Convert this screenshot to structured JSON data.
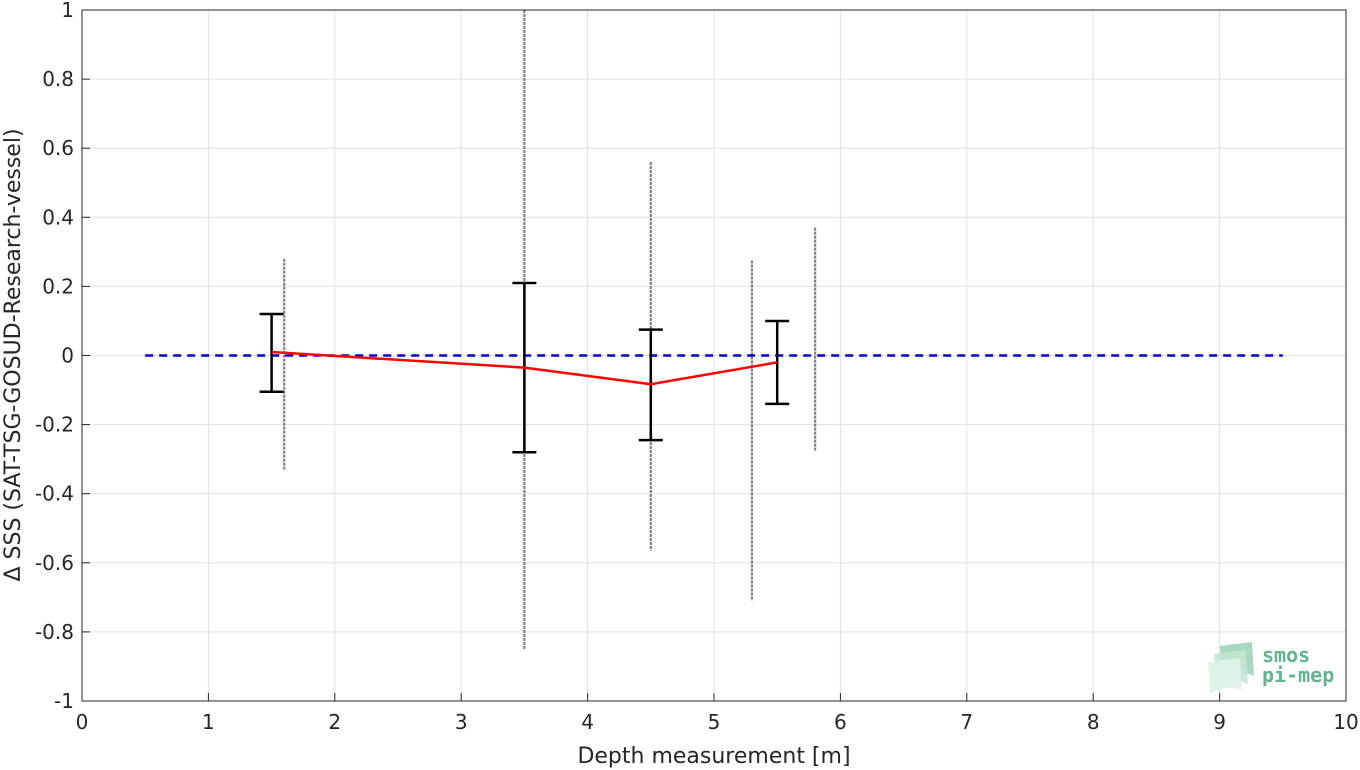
{
  "chart_data": {
    "type": "errorbar",
    "xlabel": "Depth measurement [m]",
    "ylabel": "Δ SSS (SAT-TSG-GOSUD-Research-vessel)",
    "xlim": [
      0,
      10
    ],
    "ylim": [
      -1,
      1
    ],
    "xticks": [
      0,
      1,
      2,
      3,
      4,
      5,
      6,
      7,
      8,
      9,
      10
    ],
    "yticks": [
      -1,
      -0.8,
      -0.6,
      -0.4,
      -0.2,
      0,
      0.2,
      0.4,
      0.6,
      0.8,
      1
    ],
    "ytick_labels": [
      "-1",
      "-0.8",
      "-0.6",
      "-0.4",
      "-0.2",
      "0",
      "0.2",
      "0.4",
      "0.6",
      "0.8",
      "1"
    ],
    "grid": true,
    "zero_line": {
      "x_range": [
        0.5,
        9.5
      ],
      "y": 0,
      "style": "dashed",
      "color": "#0000cc"
    },
    "mean_series": {
      "color": "#ff0000",
      "points": [
        {
          "x": 1.5,
          "y": 0.01,
          "err_low": -0.105,
          "err_high": 0.12
        },
        {
          "x": 3.5,
          "y": -0.035,
          "err_low": -0.28,
          "err_high": 0.21
        },
        {
          "x": 4.5,
          "y": -0.083,
          "err_low": -0.245,
          "err_high": 0.075
        },
        {
          "x": 5.5,
          "y": -0.02,
          "err_low": -0.14,
          "err_high": 0.1
        }
      ]
    },
    "scatter_columns": {
      "color": "#808080",
      "columns": [
        {
          "x": 1.6,
          "min": -0.33,
          "max": 0.28
        },
        {
          "x": 3.5,
          "min": -0.85,
          "max": 1.0
        },
        {
          "x": 4.5,
          "min": -0.565,
          "max": 0.56
        },
        {
          "x": 5.3,
          "min": -0.71,
          "max": 0.275
        },
        {
          "x": 5.8,
          "min": -0.275,
          "max": 0.37
        }
      ]
    }
  },
  "logo": {
    "line1": "smos",
    "line2": "pi-mep"
  }
}
